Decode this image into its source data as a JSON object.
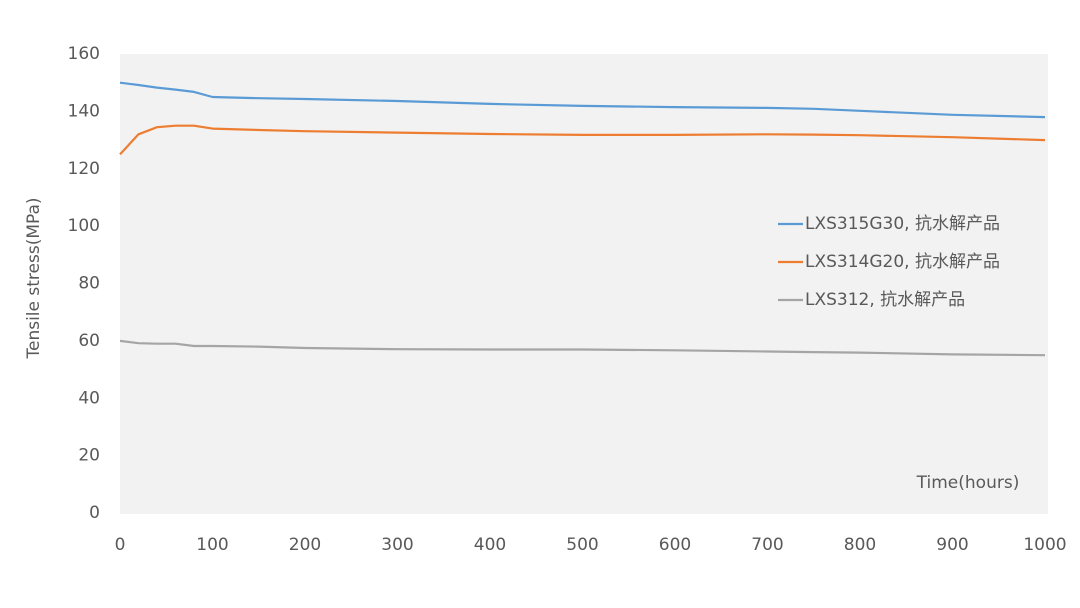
{
  "chart_data": {
    "type": "line",
    "x_label": "Time(hours)",
    "y_label": "Tensile stress(MPa)",
    "x": [
      0,
      20,
      40,
      60,
      80,
      100,
      150,
      200,
      300,
      400,
      500,
      600,
      700,
      750,
      800,
      900,
      1000
    ],
    "series": [
      {
        "name": "LXS315G30, 抗水解产品",
        "color": "#5b9bd5",
        "values": [
          150,
          149.2,
          148.3,
          147.6,
          146.8,
          145,
          144.6,
          144.3,
          143.6,
          142.6,
          141.9,
          141.5,
          141.2,
          140.9,
          140.2,
          138.8,
          138
        ]
      },
      {
        "name": "LXS314G20, 抗水解产品",
        "color": "#ed7d31",
        "values": [
          125,
          132,
          134.5,
          135,
          135,
          134,
          133.5,
          133.1,
          132.6,
          132.1,
          131.8,
          131.8,
          132,
          131.9,
          131.7,
          131,
          130
        ]
      },
      {
        "name": "LXS312, 抗水解产品",
        "color": "#a5a5a5",
        "values": [
          60,
          59.2,
          59,
          59,
          58.2,
          58.2,
          58,
          57.5,
          57.1,
          57,
          57,
          56.7,
          56.3,
          56.1,
          55.9,
          55.3,
          55
        ]
      }
    ],
    "xlim": [
      0,
      1000
    ],
    "xticks": [
      0,
      100,
      200,
      300,
      400,
      500,
      600,
      700,
      800,
      900,
      1000
    ],
    "ylim": [
      0,
      160
    ],
    "yticks": [
      0,
      20,
      40,
      60,
      80,
      100,
      120,
      140,
      160
    ],
    "legend": "right"
  }
}
